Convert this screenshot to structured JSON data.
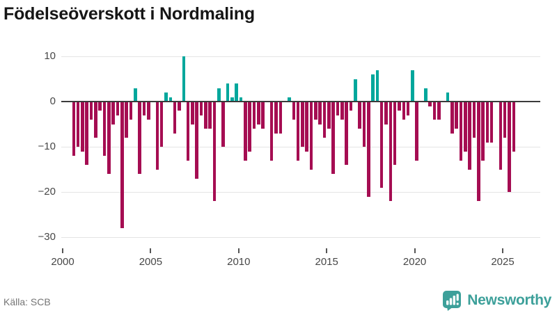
{
  "title": "Födelseöverskott i Nordmaling",
  "footer": {
    "source": "Källa: SCB",
    "brand": "Newsworthy"
  },
  "colors": {
    "positive_bar": "#00a79c",
    "negative_bar": "#a50d52",
    "gridline": "#e4e4e4",
    "zero_line": "#3b3b3b",
    "axis_text": "#474747",
    "title_text": "#161616",
    "source_text": "#757575",
    "brand_teal": "#3da09a"
  },
  "chart_data": {
    "type": "bar",
    "title": "Födelseöverskott i Nordmaling",
    "xlabel": "",
    "ylabel": "",
    "frequency": "quarterly",
    "start_year": 2000,
    "start_quarter": 1,
    "end_year": 2025,
    "end_quarter": 3,
    "x_tick_labels": [
      "2000",
      "2005",
      "2010",
      "2015",
      "2020",
      "2025"
    ],
    "y_ticks": [
      10,
      0,
      -10,
      -20,
      -30
    ],
    "y_tick_labels": [
      "10",
      "0",
      "−10",
      "−20",
      "−30"
    ],
    "ylim": [
      -30,
      10
    ],
    "grid": "horizontal",
    "legend": "none",
    "values": [
      0,
      0,
      -12,
      -10,
      -11,
      -14,
      -4,
      -8,
      -2,
      -12,
      -16,
      -5,
      -3,
      -28,
      -8,
      -4,
      3,
      -16,
      -3,
      -4,
      0,
      -15,
      -10,
      2,
      1,
      -7,
      -2,
      10,
      -13,
      -5,
      -17,
      -3,
      -6,
      -6,
      -22,
      3,
      -10,
      4,
      1,
      4,
      1,
      -13,
      -11,
      -6,
      -5,
      -6,
      0,
      -13,
      -7,
      -7,
      0,
      1,
      -4,
      -13,
      -10,
      -11,
      -15,
      -4,
      -5,
      -8,
      -6,
      -16,
      -3,
      -4,
      -14,
      -2,
      5,
      -6,
      -10,
      -21,
      6,
      7,
      -19,
      -5,
      -22,
      -14,
      -2,
      -4,
      -3,
      7,
      -13,
      0,
      3,
      -1,
      -4,
      -4,
      0,
      2,
      -7,
      -6,
      -13,
      -11,
      -15,
      -8,
      -22,
      -13,
      -9,
      -9,
      0,
      -15,
      -8,
      -20,
      -11
    ]
  }
}
